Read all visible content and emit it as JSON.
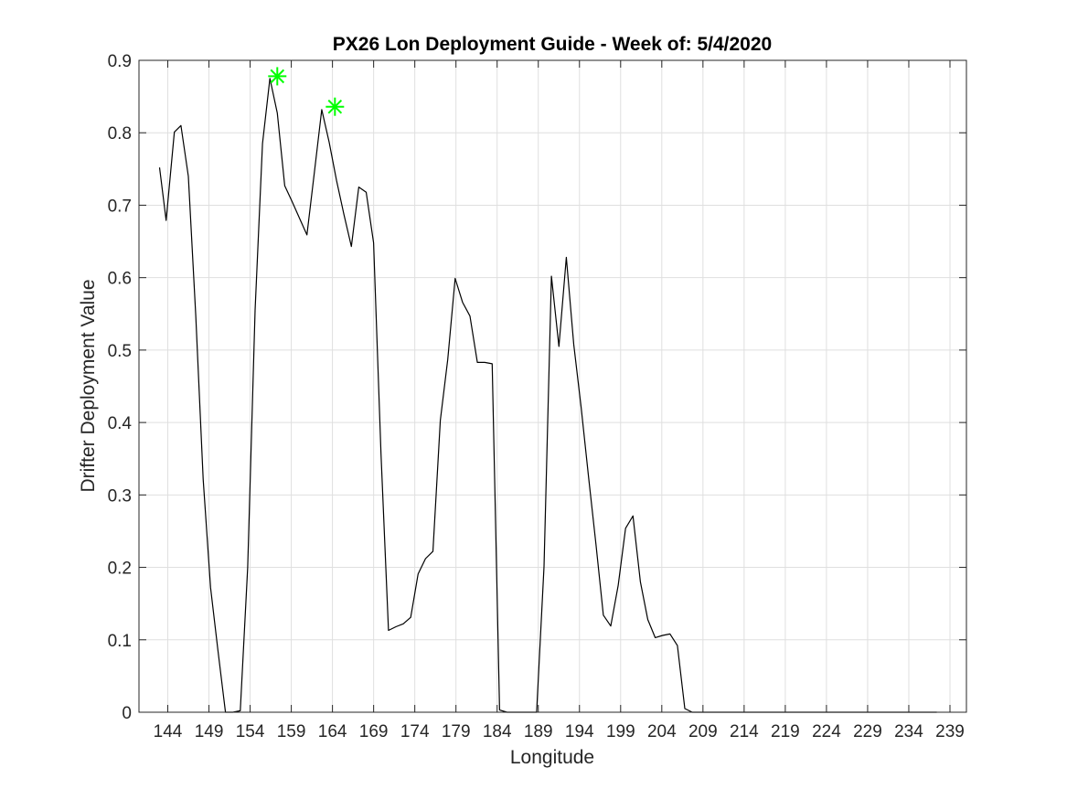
{
  "chart_data": {
    "type": "line",
    "title": "PX26 Lon Deployment Guide - Week of: 5/4/2020",
    "xlabel": "Longitude",
    "ylabel": "Drifter Deployment Value",
    "xlim": [
      140.5,
      241
    ],
    "ylim": [
      0,
      0.9
    ],
    "xticks": [
      144,
      149,
      154,
      159,
      164,
      169,
      174,
      179,
      184,
      189,
      194,
      199,
      204,
      209,
      214,
      219,
      224,
      229,
      234,
      239
    ],
    "yticks": [
      0,
      0.1,
      0.2,
      0.3,
      0.4,
      0.5,
      0.6,
      0.7,
      0.8,
      0.9
    ],
    "ytick_labels": [
      "0",
      "0.1",
      "0.2",
      "0.3",
      "0.4",
      "0.5",
      "0.6",
      "0.7",
      "0.8",
      "0.9"
    ],
    "grid": true,
    "series": [
      {
        "color": "#000000",
        "x": [
          143.0,
          143.8,
          144.8,
          145.6,
          146.5,
          147.4,
          148.3,
          149.2,
          150.1,
          151.0,
          151.9,
          152.8,
          153.7,
          154.6,
          155.5,
          156.4,
          157.3,
          158.2,
          159.1,
          160.0,
          160.9,
          161.8,
          162.7,
          163.6,
          164.5,
          165.4,
          166.3,
          167.2,
          168.1,
          169.0,
          169.9,
          170.8,
          171.7,
          172.6,
          173.5,
          174.4,
          175.3,
          176.2,
          177.1,
          178.0,
          178.9,
          179.8,
          180.7,
          181.6,
          182.5,
          183.4,
          184.3,
          185.2,
          186.1,
          187.0,
          187.9,
          188.8,
          189.7,
          190.6,
          191.5,
          192.4,
          193.3,
          194.2,
          195.1,
          196.0,
          196.9,
          197.8,
          198.7,
          199.6,
          200.5,
          201.4,
          202.3,
          203.2,
          204.1,
          205.0,
          205.9,
          206.8,
          207.7,
          208.6,
          209.5,
          210.4,
          211.3,
          212.2,
          213.1,
          214.0,
          214.9,
          215.8,
          216.7,
          217.6,
          218.5,
          219.4,
          220.3,
          221.2,
          222.1,
          223.0,
          223.9,
          224.8,
          225.7,
          226.6,
          227.5,
          228.4,
          229.3,
          230.2,
          231.1,
          232.0,
          232.9,
          233.8,
          234.7,
          235.6,
          236.5,
          237.4
        ],
        "y": [
          0.752,
          0.679,
          0.801,
          0.81,
          0.74,
          0.548,
          0.322,
          0.172,
          0.085,
          0.0,
          0.0,
          0.002,
          0.2,
          0.555,
          0.785,
          0.875,
          0.827,
          0.727,
          0.705,
          0.682,
          0.659,
          0.745,
          0.832,
          0.787,
          0.734,
          0.687,
          0.643,
          0.725,
          0.718,
          0.648,
          0.357,
          0.113,
          0.118,
          0.122,
          0.131,
          0.191,
          0.212,
          0.222,
          0.403,
          0.487,
          0.599,
          0.566,
          0.547,
          0.483,
          0.483,
          0.481,
          0.003,
          0.0,
          0.0,
          0.0,
          0.0,
          0.0,
          0.201,
          0.602,
          0.505,
          0.628,
          0.508,
          0.421,
          0.325,
          0.232,
          0.134,
          0.119,
          0.175,
          0.254,
          0.271,
          0.18,
          0.128,
          0.103,
          0.106,
          0.108,
          0.092,
          0.005,
          0.0,
          0.0,
          0.0,
          0.0,
          0.0,
          0.0,
          0.0,
          0.0,
          0.0,
          0.0,
          0.0,
          0.0,
          0.0,
          0.0,
          0.0,
          0.0,
          0.0,
          0.0,
          0.0,
          0.0,
          0.0,
          0.0,
          0.0,
          0.0,
          0.0,
          0.0,
          0.0,
          0.0,
          0.0,
          0.0,
          0.0,
          0.0,
          0.0,
          0.0
        ]
      }
    ],
    "markers": {
      "symbol": "asterisk",
      "color": "#00ff00",
      "points": [
        {
          "x": 157.3,
          "y": 0.878
        },
        {
          "x": 164.3,
          "y": 0.836
        }
      ]
    }
  }
}
